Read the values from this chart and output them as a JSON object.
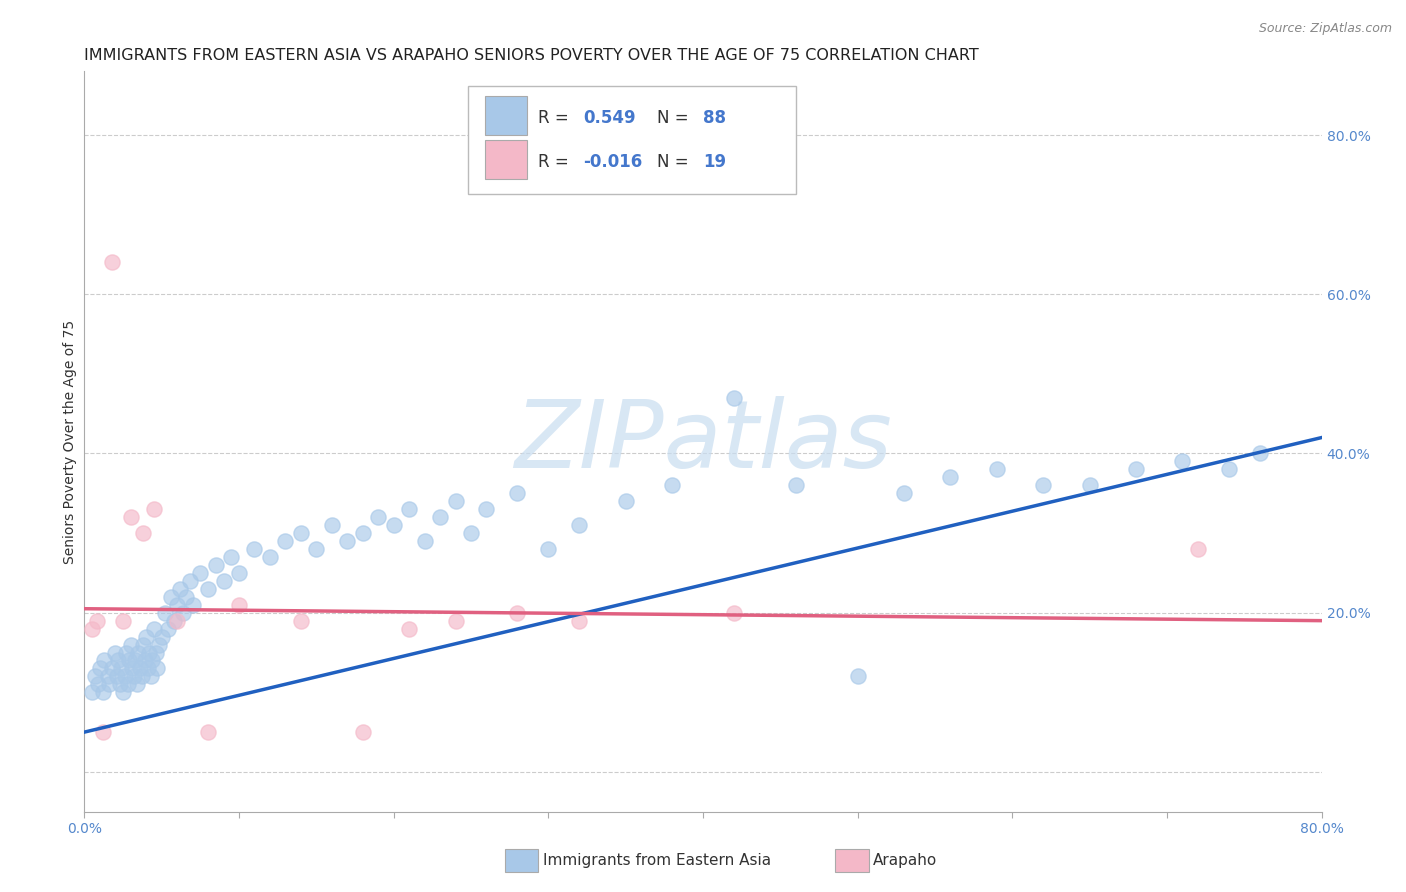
{
  "title": "IMMIGRANTS FROM EASTERN ASIA VS ARAPAHO SENIORS POVERTY OVER THE AGE OF 75 CORRELATION CHART",
  "source_text": "Source: ZipAtlas.com",
  "ylabel": "Seniors Poverty Over the Age of 75",
  "xlim": [
    0.0,
    0.8
  ],
  "ylim": [
    -0.05,
    0.88
  ],
  "xtick_positions": [
    0.0,
    0.1,
    0.2,
    0.3,
    0.4,
    0.5,
    0.6,
    0.7,
    0.8
  ],
  "yticks_right": [
    0.0,
    0.2,
    0.4,
    0.6,
    0.8
  ],
  "blue_color": "#a8c8e8",
  "pink_color": "#f4b8c8",
  "blue_line_color": "#2060c0",
  "pink_line_color": "#e06080",
  "legend_r_color": "#4477cc",
  "legend_n_color": "#4477cc",
  "legend_label_blue": "Immigrants from Eastern Asia",
  "legend_label_pink": "Arapaho",
  "watermark": "ZIPatlas",
  "blue_scatter_x": [
    0.005,
    0.007,
    0.009,
    0.01,
    0.012,
    0.013,
    0.015,
    0.016,
    0.018,
    0.02,
    0.021,
    0.022,
    0.023,
    0.024,
    0.025,
    0.026,
    0.027,
    0.028,
    0.029,
    0.03,
    0.031,
    0.032,
    0.033,
    0.034,
    0.035,
    0.036,
    0.037,
    0.038,
    0.039,
    0.04,
    0.041,
    0.042,
    0.043,
    0.044,
    0.045,
    0.046,
    0.047,
    0.048,
    0.05,
    0.052,
    0.054,
    0.056,
    0.058,
    0.06,
    0.062,
    0.064,
    0.066,
    0.068,
    0.07,
    0.075,
    0.08,
    0.085,
    0.09,
    0.095,
    0.1,
    0.11,
    0.12,
    0.13,
    0.14,
    0.15,
    0.16,
    0.17,
    0.18,
    0.19,
    0.2,
    0.21,
    0.22,
    0.23,
    0.24,
    0.25,
    0.26,
    0.28,
    0.3,
    0.32,
    0.35,
    0.38,
    0.42,
    0.46,
    0.5,
    0.53,
    0.56,
    0.59,
    0.62,
    0.65,
    0.68,
    0.71,
    0.74,
    0.76
  ],
  "blue_scatter_y": [
    0.1,
    0.12,
    0.11,
    0.13,
    0.1,
    0.14,
    0.12,
    0.11,
    0.13,
    0.15,
    0.12,
    0.14,
    0.11,
    0.13,
    0.1,
    0.12,
    0.15,
    0.11,
    0.14,
    0.16,
    0.13,
    0.12,
    0.14,
    0.11,
    0.15,
    0.13,
    0.12,
    0.16,
    0.14,
    0.17,
    0.13,
    0.15,
    0.12,
    0.14,
    0.18,
    0.15,
    0.13,
    0.16,
    0.17,
    0.2,
    0.18,
    0.22,
    0.19,
    0.21,
    0.23,
    0.2,
    0.22,
    0.24,
    0.21,
    0.25,
    0.23,
    0.26,
    0.24,
    0.27,
    0.25,
    0.28,
    0.27,
    0.29,
    0.3,
    0.28,
    0.31,
    0.29,
    0.3,
    0.32,
    0.31,
    0.33,
    0.29,
    0.32,
    0.34,
    0.3,
    0.33,
    0.35,
    0.28,
    0.31,
    0.34,
    0.36,
    0.47,
    0.36,
    0.12,
    0.35,
    0.37,
    0.38,
    0.36,
    0.36,
    0.38,
    0.39,
    0.38,
    0.4
  ],
  "pink_scatter_x": [
    0.005,
    0.008,
    0.012,
    0.018,
    0.025,
    0.03,
    0.038,
    0.045,
    0.06,
    0.08,
    0.1,
    0.14,
    0.18,
    0.21,
    0.24,
    0.28,
    0.32,
    0.42,
    0.72
  ],
  "pink_scatter_y": [
    0.18,
    0.19,
    0.05,
    0.64,
    0.19,
    0.32,
    0.3,
    0.33,
    0.19,
    0.05,
    0.21,
    0.19,
    0.05,
    0.18,
    0.19,
    0.2,
    0.19,
    0.2,
    0.28
  ],
  "blue_line_x": [
    0.0,
    0.8
  ],
  "blue_line_y": [
    0.05,
    0.42
  ],
  "pink_line_x": [
    0.0,
    0.8
  ],
  "pink_line_y": [
    0.205,
    0.19
  ],
  "grid_color": "#cccccc",
  "background_color": "#ffffff",
  "title_fontsize": 11.5,
  "axis_label_fontsize": 10,
  "tick_fontsize": 10,
  "scatter_size": 120
}
